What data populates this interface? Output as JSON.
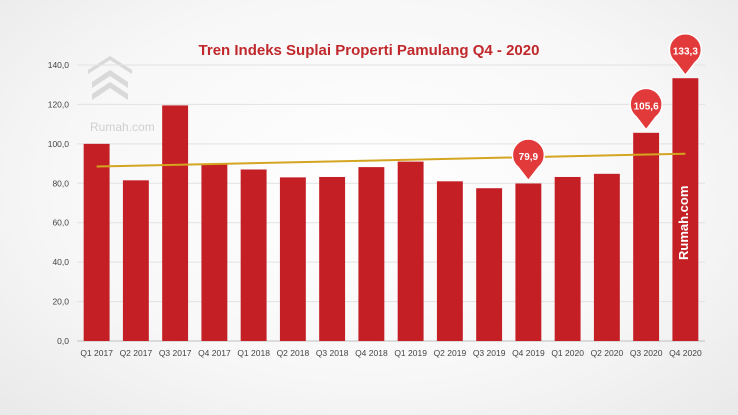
{
  "chart_data": {
    "type": "bar",
    "title": "Tren Indeks Suplai Properti Pamulang Q4 - 2020",
    "categories": [
      "Q1 2017",
      "Q2 2017",
      "Q3 2017",
      "Q4 2017",
      "Q1 2018",
      "Q2 2018",
      "Q3 2018",
      "Q4 2018",
      "Q1 2019",
      "Q2 2019",
      "Q3 2019",
      "Q4 2019",
      "Q1 2020",
      "Q2 2020",
      "Q3 2020",
      "Q4 2020"
    ],
    "values": [
      100.0,
      81.5,
      119.5,
      90.0,
      87.0,
      83.0,
      83.2,
      88.2,
      91.0,
      81.0,
      77.5,
      79.9,
      83.2,
      84.8,
      105.6,
      133.3
    ],
    "ylim": [
      0,
      140
    ],
    "yticks": [
      "0,0",
      "20,0",
      "40,0",
      "60,0",
      "80,0",
      "100,0",
      "120,0",
      "140,0"
    ],
    "ytick_values": [
      0,
      20,
      40,
      60,
      80,
      100,
      120,
      140
    ],
    "grid": true,
    "bar_color": "#c41f25",
    "trendline": {
      "color": "#d4a520",
      "start": 88.5,
      "end": 95.0
    },
    "callouts": [
      {
        "index": 11,
        "label": "79,9"
      },
      {
        "index": 14,
        "label": "105,6"
      },
      {
        "index": 15,
        "label": "133,3"
      }
    ],
    "callout_color": "#e23a3a"
  },
  "branding": {
    "logo_text": "Rumah.com",
    "watermark_text": "Rumah.com",
    "logo_icon": "rumah-logo-icon"
  }
}
